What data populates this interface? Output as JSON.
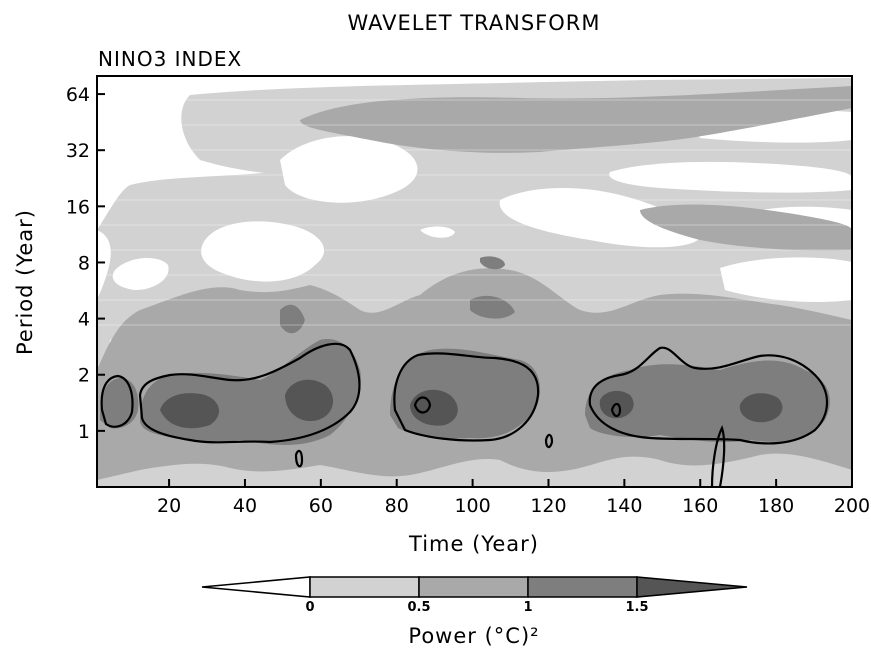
{
  "chart_data": {
    "type": "heatmap",
    "title": "WAVELET TRANSFORM",
    "subtitle": "NINO3 INDEX",
    "xlabel": "Time (Year)",
    "ylabel": "Period (Year)",
    "xlim": [
      1,
      200
    ],
    "ylim": [
      0.5,
      80
    ],
    "y_scale": "log2",
    "x_ticks": [
      20,
      40,
      60,
      80,
      100,
      120,
      140,
      160,
      180,
      200
    ],
    "y_ticks": [
      1,
      2,
      4,
      8,
      16,
      32,
      64
    ],
    "colorbar": {
      "label": "Power (°C)²",
      "levels": [
        0,
        0.5,
        1,
        1.5
      ],
      "level_labels": [
        "0",
        "0.5",
        "1",
        "1.5"
      ],
      "colors": [
        "#ffffff",
        "#d2d2d2",
        "#a9a9a9",
        "#7e7e7e",
        "#555555"
      ],
      "extend": "both"
    },
    "significance_contour_level": 1,
    "power_regions": [
      {
        "period_band": [
          0.8,
          3.0
        ],
        "time_ranges": [
          [
            1,
            8
          ],
          [
            12,
            75
          ],
          [
            80,
            118
          ],
          [
            130,
            198
          ]
        ],
        "level": "> 1"
      },
      {
        "period_band": [
          1.5,
          4.5
        ],
        "time_ranges": [
          [
            40,
            75
          ],
          [
            85,
            110
          ],
          [
            140,
            175
          ]
        ],
        "level": "> 1"
      },
      {
        "period_band": [
          3.0,
          8.0
        ],
        "time_ranges": [
          [
            25,
            75
          ],
          [
            90,
            115
          ],
          [
            140,
            200
          ]
        ],
        "level": "0.5 - 1"
      },
      {
        "period_band": [
          6.0,
          40.0
        ],
        "time_ranges": [
          [
            10,
            200
          ]
        ],
        "level": "0 - 0.5"
      },
      {
        "period_band": [
          30.0,
          70.0
        ],
        "time_ranges": [
          [
            55,
            200
          ]
        ],
        "level": "0.5 - 1"
      }
    ]
  }
}
